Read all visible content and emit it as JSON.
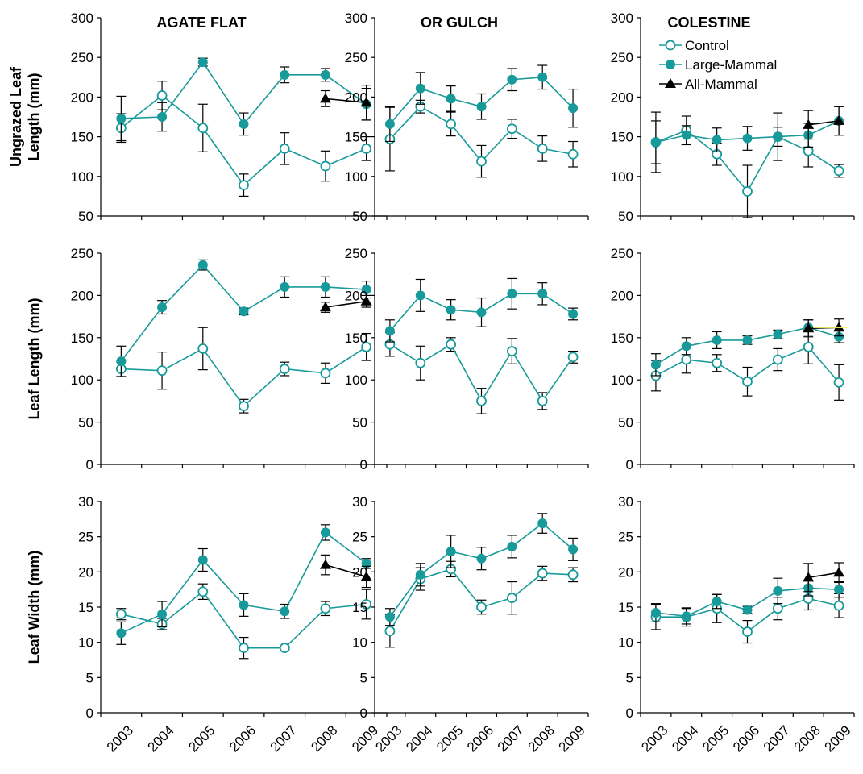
{
  "colors": {
    "teal": "#199a9a",
    "black": "#000000",
    "highlight": "#ffff66"
  },
  "row_labels": [
    "Ungrazed Leaf|Length (mm)",
    "Leaf Length (mm)",
    "Leaf Width (mm)"
  ],
  "row_yaxes": [
    {
      "min": 50,
      "max": 300,
      "ticks": [
        50,
        100,
        150,
        200,
        250,
        300
      ]
    },
    {
      "min": 0,
      "max": 250,
      "ticks": [
        0,
        50,
        100,
        150,
        200,
        250
      ]
    },
    {
      "min": 0,
      "max": 30,
      "ticks": [
        0,
        5,
        10,
        15,
        20,
        25,
        30
      ]
    }
  ],
  "years": [
    "2003",
    "2004",
    "2005",
    "2006",
    "2007",
    "2008",
    "2009"
  ],
  "sites": [
    "AGATE FLAT",
    "OR GULCH",
    "COLESTINE"
  ],
  "legend": [
    {
      "name": "Control",
      "marker": "open-circle",
      "color": "#199a9a"
    },
    {
      "name": "Large-Mammal",
      "marker": "filled-circle",
      "color": "#199a9a"
    },
    {
      "name": "All-Mammal",
      "marker": "triangle",
      "color": "#000000"
    }
  ],
  "chart_data": [
    {
      "type": "line",
      "row": 0,
      "col": 0,
      "site": "AGATE FLAT",
      "ylabel": "Ungrazed Leaf Length (mm)",
      "ylim": [
        50,
        300
      ],
      "x": [
        "2003",
        "2004",
        "2005",
        "2006",
        "2007",
        "2008",
        "2009"
      ],
      "series": [
        {
          "name": "Control",
          "values": [
            161,
            202,
            161,
            89,
            135,
            113,
            135
          ],
          "err": [
            18,
            18,
            30,
            14,
            20,
            19,
            15
          ]
        },
        {
          "name": "Large-Mammal",
          "values": [
            173,
            175,
            244,
            166,
            228,
            228,
            191
          ],
          "err": [
            28,
            18,
            5,
            14,
            10,
            8,
            20
          ]
        },
        {
          "name": "All-Mammal",
          "values": [
            null,
            null,
            null,
            null,
            null,
            198,
            193
          ],
          "err": [
            null,
            null,
            null,
            null,
            null,
            10,
            22
          ]
        }
      ]
    },
    {
      "type": "line",
      "row": 0,
      "col": 1,
      "site": "OR GULCH",
      "ylabel": "Ungrazed Leaf Length (mm)",
      "ylim": [
        50,
        300
      ],
      "x": [
        "2003",
        "2004",
        "2005",
        "2006",
        "2007",
        "2008",
        "2009"
      ],
      "series": [
        {
          "name": "Control",
          "values": [
            147,
            188,
            166,
            119,
            160,
            135,
            128
          ],
          "err": [
            40,
            8,
            15,
            20,
            12,
            16,
            16
          ]
        },
        {
          "name": "Large-Mammal",
          "values": [
            166,
            211,
            198,
            188,
            222,
            225,
            186
          ],
          "err": [
            22,
            20,
            16,
            16,
            14,
            15,
            24
          ]
        }
      ]
    },
    {
      "type": "line",
      "row": 0,
      "col": 2,
      "site": "COLESTINE",
      "ylabel": "Ungrazed Leaf Length (mm)",
      "ylim": [
        50,
        300
      ],
      "x": [
        "2003",
        "2004",
        "2005",
        "2006",
        "2007",
        "2008",
        "2009"
      ],
      "series": [
        {
          "name": "Control",
          "values": [
            143,
            158,
            128,
            81,
            150,
            132,
            107
          ],
          "err": [
            38,
            18,
            14,
            33,
            30,
            20,
            8
          ]
        },
        {
          "name": "Large-Mammal",
          "values": [
            143,
            152,
            146,
            148,
            150,
            152,
            170
          ],
          "err": [
            27,
            12,
            15,
            15,
            12,
            15,
            18
          ]
        },
        {
          "name": "All-Mammal",
          "values": [
            null,
            null,
            null,
            null,
            null,
            165,
            170
          ],
          "err": [
            null,
            null,
            null,
            null,
            null,
            18,
            18
          ]
        }
      ]
    },
    {
      "type": "line",
      "row": 1,
      "col": 0,
      "site": "AGATE FLAT",
      "ylabel": "Leaf Length (mm)",
      "ylim": [
        0,
        250
      ],
      "x": [
        "2003",
        "2004",
        "2005",
        "2006",
        "2007",
        "2008",
        "2009"
      ],
      "series": [
        {
          "name": "Control",
          "values": [
            113,
            111,
            137,
            69,
            113,
            108,
            139
          ],
          "err": [
            9,
            22,
            25,
            8,
            8,
            12,
            16
          ]
        },
        {
          "name": "Large-Mammal",
          "values": [
            122,
            186,
            236,
            181,
            210,
            210,
            207
          ],
          "err": [
            18,
            8,
            6,
            4,
            12,
            12,
            10
          ]
        },
        {
          "name": "All-Mammal",
          "values": [
            null,
            null,
            null,
            null,
            null,
            186,
            193
          ],
          "err": [
            null,
            null,
            null,
            null,
            null,
            6,
            7
          ]
        }
      ]
    },
    {
      "type": "line",
      "row": 1,
      "col": 1,
      "site": "OR GULCH",
      "ylabel": "Leaf Length (mm)",
      "ylim": [
        0,
        250
      ],
      "x": [
        "2003",
        "2004",
        "2005",
        "2006",
        "2007",
        "2008",
        "2009"
      ],
      "series": [
        {
          "name": "Control",
          "values": [
            142,
            120,
            142,
            75,
            134,
            75,
            127
          ],
          "err": [
            14,
            20,
            8,
            15,
            15,
            10,
            7
          ]
        },
        {
          "name": "Large-Mammal",
          "values": [
            158,
            200,
            183,
            180,
            202,
            202,
            178
          ],
          "err": [
            13,
            19,
            12,
            17,
            18,
            13,
            7
          ]
        }
      ]
    },
    {
      "type": "line",
      "row": 1,
      "col": 2,
      "site": "COLESTINE",
      "ylabel": "Leaf Length (mm)",
      "ylim": [
        0,
        250
      ],
      "x": [
        "2003",
        "2004",
        "2005",
        "2006",
        "2007",
        "2008",
        "2009"
      ],
      "series": [
        {
          "name": "Control",
          "values": [
            105,
            124,
            120,
            98,
            124,
            139,
            97
          ],
          "err": [
            18,
            16,
            10,
            17,
            13,
            20,
            21
          ]
        },
        {
          "name": "Large-Mammal",
          "values": [
            118,
            140,
            147,
            147,
            154,
            162,
            151
          ],
          "err": [
            13,
            10,
            10,
            5,
            5,
            9,
            7
          ]
        },
        {
          "name": "All-Mammal",
          "values": [
            null,
            null,
            null,
            null,
            null,
            161,
            162
          ],
          "err": [
            null,
            null,
            null,
            null,
            null,
            10,
            10
          ]
        }
      ]
    },
    {
      "type": "line",
      "row": 2,
      "col": 0,
      "site": "AGATE FLAT",
      "ylabel": "Leaf Width (mm)",
      "ylim": [
        0,
        30
      ],
      "x": [
        "2003",
        "2004",
        "2005",
        "2006",
        "2007",
        "2008",
        "2009"
      ],
      "series": [
        {
          "name": "Control",
          "values": [
            14.0,
            12.6,
            17.2,
            9.2,
            9.2,
            14.8,
            15.4
          ],
          "err": [
            0.8,
            0.8,
            1.1,
            1.5,
            0.3,
            1.0,
            2.1
          ]
        },
        {
          "name": "Large-Mammal",
          "values": [
            11.3,
            14.0,
            21.7,
            15.3,
            14.4,
            25.6,
            21.2
          ],
          "err": [
            1.6,
            1.8,
            1.6,
            1.6,
            1.0,
            1.1,
            0.7
          ]
        },
        {
          "name": "All-Mammal",
          "values": [
            null,
            null,
            null,
            null,
            null,
            21.0,
            19.3
          ],
          "err": [
            null,
            null,
            null,
            null,
            null,
            1.4,
            1.5
          ]
        }
      ]
    },
    {
      "type": "line",
      "row": 2,
      "col": 1,
      "site": "OR GULCH",
      "ylabel": "Leaf Width (mm)",
      "ylim": [
        0,
        30
      ],
      "x": [
        "2003",
        "2004",
        "2005",
        "2006",
        "2007",
        "2008",
        "2009"
      ],
      "series": [
        {
          "name": "Control",
          "values": [
            11.6,
            19.0,
            20.4,
            15.0,
            16.3,
            19.8,
            19.6
          ],
          "err": [
            2.3,
            1.6,
            1.1,
            1.0,
            2.3,
            1.0,
            1.0
          ]
        },
        {
          "name": "Large-Mammal",
          "values": [
            13.6,
            19.6,
            22.9,
            21.9,
            23.6,
            26.9,
            23.2
          ],
          "err": [
            1.2,
            1.6,
            2.3,
            1.6,
            1.6,
            1.4,
            1.6
          ]
        }
      ]
    },
    {
      "type": "line",
      "row": 2,
      "col": 2,
      "site": "COLESTINE",
      "ylabel": "Leaf Width (mm)",
      "ylim": [
        0,
        30
      ],
      "x": [
        "2003",
        "2004",
        "2005",
        "2006",
        "2007",
        "2008",
        "2009"
      ],
      "series": [
        {
          "name": "Control",
          "values": [
            13.6,
            13.6,
            14.8,
            11.5,
            14.8,
            16.2,
            15.2
          ],
          "err": [
            1.8,
            1.3,
            2.0,
            1.6,
            1.6,
            1.6,
            1.7
          ]
        },
        {
          "name": "Large-Mammal",
          "values": [
            14.2,
            13.7,
            15.8,
            14.6,
            17.3,
            17.7,
            17.5
          ],
          "err": [
            1.3,
            1.1,
            1.0,
            0.5,
            1.8,
            1.1,
            1.1
          ]
        },
        {
          "name": "All-Mammal",
          "values": [
            null,
            null,
            null,
            null,
            null,
            19.2,
            19.9
          ],
          "err": [
            null,
            null,
            null,
            null,
            null,
            2.0,
            1.4
          ]
        }
      ]
    }
  ]
}
